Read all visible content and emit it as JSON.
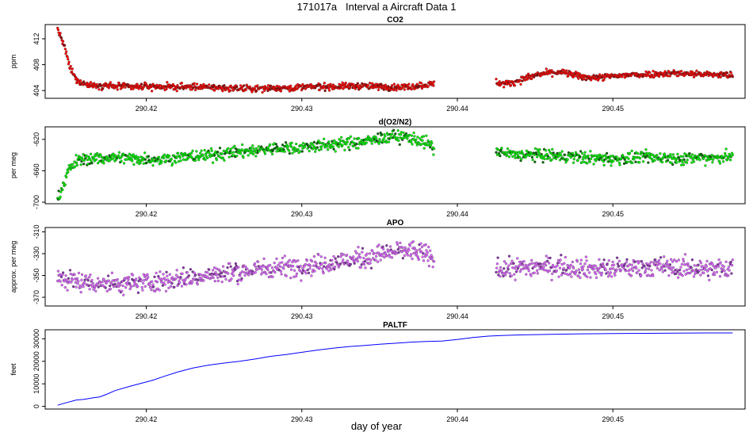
{
  "figure": {
    "title": "171017a   Interval a Aircraft Data 1",
    "xlabel": "day of year",
    "colors": {
      "axis": "#000000",
      "co2": "#ff0000",
      "o2n2": "#00ee00",
      "apo": "#dd66ff",
      "paltf": "#0000ff"
    }
  },
  "chart_data": [
    {
      "type": "scatter",
      "title": "CO2",
      "xlabel": "",
      "ylabel": "ppm",
      "xlim": [
        290.4135,
        290.4585
      ],
      "ylim": [
        402.8,
        414.2
      ],
      "xticks": [
        290.42,
        290.43,
        290.44,
        290.45
      ],
      "xtick_labels": [
        "290.42",
        "290.43",
        "290.44",
        "290.45"
      ],
      "yticks": [
        404,
        408,
        412
      ],
      "ytick_labels": [
        "404",
        "408",
        "412"
      ],
      "grid": false,
      "series": [
        {
          "name": "CO2",
          "color": "#ff0000",
          "x": [
            290.4143,
            290.4147,
            290.4151,
            290.4155,
            290.4162,
            290.417,
            290.418,
            290.419,
            290.42,
            290.421,
            290.422,
            290.423,
            290.424,
            290.425,
            290.426,
            290.427,
            290.428,
            290.429,
            290.43,
            290.431,
            290.432,
            290.433,
            290.434,
            290.435,
            290.436,
            290.437,
            290.438,
            290.4385,
            290.4425,
            290.443,
            290.4435,
            290.444,
            290.4445,
            290.445,
            290.4455,
            290.446,
            290.4465,
            290.447,
            290.4475,
            290.448,
            290.449,
            290.45,
            290.451,
            290.452,
            290.453,
            290.454,
            290.455,
            290.456,
            290.457,
            290.4577
          ],
          "y": [
            413.5,
            411.0,
            407.5,
            405.6,
            404.9,
            404.8,
            404.7,
            404.6,
            404.6,
            404.6,
            404.5,
            404.6,
            404.5,
            404.4,
            404.3,
            404.3,
            404.4,
            404.4,
            404.5,
            404.6,
            404.6,
            404.7,
            404.7,
            404.6,
            404.5,
            404.6,
            404.9,
            405.1,
            405.3,
            405.0,
            405.2,
            405.6,
            406.0,
            406.3,
            406.6,
            406.8,
            406.8,
            406.7,
            406.4,
            406.1,
            406.0,
            406.2,
            406.4,
            406.5,
            406.6,
            406.7,
            406.6,
            406.5,
            406.4,
            406.4
          ]
        }
      ]
    },
    {
      "type": "scatter",
      "title": "d(O2/N2)",
      "xlabel": "",
      "ylabel": "per meg",
      "xlim": [
        290.4135,
        290.4585
      ],
      "ylim": [
        -702,
        -604
      ],
      "xticks": [
        290.42,
        290.43,
        290.44,
        290.45
      ],
      "xtick_labels": [
        "290.42",
        "290.43",
        "290.44",
        "290.45"
      ],
      "yticks": [
        -700,
        -660,
        -620
      ],
      "ytick_labels": [
        "-700",
        "-660",
        "-620"
      ],
      "grid": false,
      "series": [
        {
          "name": "d(O2/N2)",
          "color": "#00ee00",
          "x": [
            290.4143,
            290.4146,
            290.415,
            290.4155,
            290.416,
            290.417,
            290.418,
            290.419,
            290.42,
            290.421,
            290.422,
            290.423,
            290.424,
            290.425,
            290.426,
            290.427,
            290.428,
            290.429,
            290.43,
            290.431,
            290.432,
            290.433,
            290.434,
            290.435,
            290.436,
            290.437,
            290.438,
            290.4385,
            290.4425,
            290.443,
            290.444,
            290.445,
            290.446,
            290.447,
            290.448,
            290.449,
            290.45,
            290.451,
            290.452,
            290.453,
            290.454,
            290.455,
            290.456,
            290.457,
            290.4577
          ],
          "y": [
            -698,
            -680,
            -660,
            -648,
            -645,
            -644,
            -643,
            -644,
            -645,
            -645,
            -643,
            -642,
            -640,
            -638,
            -636,
            -634,
            -632,
            -631,
            -630,
            -628,
            -627,
            -625,
            -623,
            -619,
            -616,
            -618,
            -624,
            -632,
            -636,
            -638,
            -640,
            -640,
            -641,
            -642,
            -643,
            -644,
            -645,
            -644,
            -643,
            -643,
            -644,
            -644,
            -643,
            -643,
            -642
          ]
        }
      ]
    },
    {
      "type": "scatter",
      "title": "APO",
      "xlabel": "",
      "ylabel": "approx. per meg",
      "xlim": [
        290.4135,
        290.4585
      ],
      "ylim": [
        -378,
        -306
      ],
      "xticks": [
        290.42,
        290.43,
        290.44,
        290.45
      ],
      "xtick_labels": [
        "290.42",
        "290.43",
        "290.44",
        "290.45"
      ],
      "yticks": [
        -370,
        -350,
        -330,
        -310
      ],
      "ytick_labels": [
        "-370",
        "-350",
        "-330",
        "-310"
      ],
      "grid": false,
      "series": [
        {
          "name": "APO",
          "color": "#dd66ff",
          "x": [
            290.4143,
            290.415,
            290.416,
            290.417,
            290.418,
            290.419,
            290.42,
            290.421,
            290.422,
            290.423,
            290.424,
            290.425,
            290.426,
            290.427,
            290.428,
            290.429,
            290.43,
            290.431,
            290.432,
            290.433,
            290.434,
            290.435,
            290.436,
            290.437,
            290.438,
            290.4385,
            290.4425,
            290.443,
            290.444,
            290.445,
            290.446,
            290.447,
            290.448,
            290.449,
            290.45,
            290.451,
            290.452,
            290.453,
            290.454,
            290.455,
            290.456,
            290.457,
            290.4577
          ],
          "y": [
            -352,
            -354,
            -356,
            -357,
            -358,
            -357,
            -356,
            -355,
            -353,
            -352,
            -350,
            -348,
            -347,
            -345,
            -343,
            -342,
            -341,
            -340,
            -338,
            -336,
            -334,
            -331,
            -328,
            -327,
            -331,
            -337,
            -344,
            -344,
            -343,
            -342,
            -342,
            -342,
            -343,
            -344,
            -344,
            -343,
            -342,
            -342,
            -343,
            -343,
            -344,
            -344,
            -343
          ]
        }
      ]
    },
    {
      "type": "line",
      "title": "PALTF",
      "xlabel": "day of year",
      "ylabel": "feet",
      "xlim": [
        290.4135,
        290.4585
      ],
      "ylim": [
        -1200,
        34000
      ],
      "xticks": [
        290.42,
        290.43,
        290.44,
        290.45
      ],
      "xtick_labels": [
        "290.42",
        "290.43",
        "290.44",
        "290.45"
      ],
      "yticks": [
        0,
        10000,
        20000,
        30000
      ],
      "ytick_labels": [
        "0",
        "10000",
        "20000",
        "30000"
      ],
      "grid": false,
      "series": [
        {
          "name": "PALTF",
          "color": "#0000ff",
          "x": [
            290.4143,
            290.4148,
            290.4155,
            290.416,
            290.4166,
            290.417,
            290.4175,
            290.418,
            290.419,
            290.42,
            290.4205,
            290.421,
            290.422,
            290.423,
            290.424,
            290.425,
            290.426,
            290.427,
            290.428,
            290.429,
            290.43,
            290.431,
            290.432,
            290.433,
            290.434,
            290.435,
            290.436,
            290.437,
            290.438,
            290.439,
            290.44,
            290.441,
            290.442,
            290.443,
            290.444,
            290.446,
            290.448,
            290.45,
            290.452,
            290.454,
            290.456,
            290.4577
          ],
          "y": [
            500,
            1500,
            2800,
            3100,
            3800,
            4200,
            5500,
            7000,
            9000,
            10800,
            11800,
            13000,
            15200,
            17000,
            18300,
            19200,
            20000,
            21000,
            22200,
            23000,
            24000,
            25000,
            25800,
            26500,
            27000,
            27600,
            28000,
            28500,
            28800,
            29000,
            29700,
            30600,
            31200,
            31500,
            31700,
            32000,
            32200,
            32300,
            32400,
            32500,
            32600,
            32600
          ]
        }
      ]
    }
  ]
}
